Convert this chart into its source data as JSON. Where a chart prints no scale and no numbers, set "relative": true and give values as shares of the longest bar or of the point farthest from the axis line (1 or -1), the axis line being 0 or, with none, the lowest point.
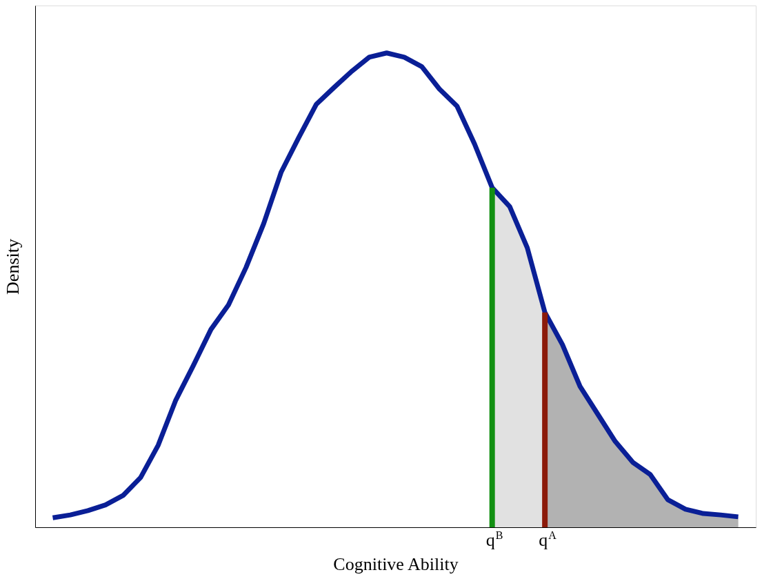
{
  "chart_data": {
    "type": "line",
    "xlabel": "Cognitive Ability",
    "ylabel": "Density",
    "relative": true,
    "tick_labels": "x",
    "marker": "none",
    "line_style": "solid",
    "categories": [
      null,
      null,
      null,
      null,
      null,
      null,
      null,
      null,
      null,
      null,
      null,
      null,
      null,
      null,
      null,
      null,
      null,
      null,
      null,
      null,
      null,
      null,
      null,
      null,
      null,
      "q$^{B}$",
      null,
      null,
      "q$^{A}$",
      null,
      null,
      null,
      null,
      null,
      null,
      null,
      null,
      null,
      null,
      null
    ],
    "series": [
      {
        "type": "area",
        "color": "#d9d9d9",
        "values": [
          null,
          null,
          null,
          null,
          null,
          null,
          null,
          null,
          null,
          null,
          null,
          null,
          null,
          null,
          null,
          null,
          null,
          null,
          null,
          null,
          null,
          null,
          null,
          null,
          null,
          0.716,
          0.676,
          0.589,
          0.453,
          0.385,
          0.297,
          0.239,
          0.181,
          0.137,
          0.111,
          0.058,
          0.038,
          0.029,
          0.026,
          0.022
        ]
      },
      {
        "type": "area",
        "color": "#a6a6a6",
        "values": [
          null,
          null,
          null,
          null,
          null,
          null,
          null,
          null,
          null,
          null,
          null,
          null,
          null,
          null,
          null,
          null,
          null,
          null,
          null,
          null,
          null,
          null,
          null,
          null,
          null,
          null,
          null,
          null,
          0.453,
          0.385,
          0.297,
          0.239,
          0.181,
          0.137,
          0.111,
          0.058,
          0.038,
          0.029,
          0.026,
          0.022
        ]
      },
      {
        "color": "#0a1f96",
        "values": [
          0.02,
          0.026,
          0.035,
          0.047,
          0.067,
          0.105,
          0.173,
          0.268,
          0.341,
          0.417,
          0.469,
          0.548,
          0.64,
          0.749,
          0.822,
          0.892,
          0.927,
          0.961,
          0.991,
          1,
          0.991,
          0.971,
          0.924,
          0.888,
          0.808,
          0.716,
          0.676,
          0.589,
          0.453,
          0.385,
          0.297,
          0.239,
          0.181,
          0.137,
          0.111,
          0.058,
          0.038,
          0.029,
          0.026,
          0.022
        ]
      },
      {
        "type": "bar",
        "color": "#129012",
        "values": [
          null,
          null,
          null,
          null,
          null,
          null,
          null,
          null,
          null,
          null,
          null,
          null,
          null,
          null,
          null,
          null,
          null,
          null,
          null,
          null,
          null,
          null,
          null,
          null,
          null,
          0.716,
          null,
          null,
          null,
          null,
          null,
          null,
          null,
          null,
          null,
          null,
          null,
          null,
          null,
          null
        ]
      },
      {
        "type": "bar",
        "color": "#8b1a0a",
        "values": [
          null,
          null,
          null,
          null,
          null,
          null,
          null,
          null,
          null,
          null,
          null,
          null,
          null,
          null,
          null,
          null,
          null,
          null,
          null,
          null,
          null,
          null,
          null,
          null,
          null,
          null,
          null,
          null,
          0.453,
          null,
          null,
          null,
          null,
          null,
          null,
          null,
          null,
          null,
          null,
          null
        ]
      }
    ]
  }
}
